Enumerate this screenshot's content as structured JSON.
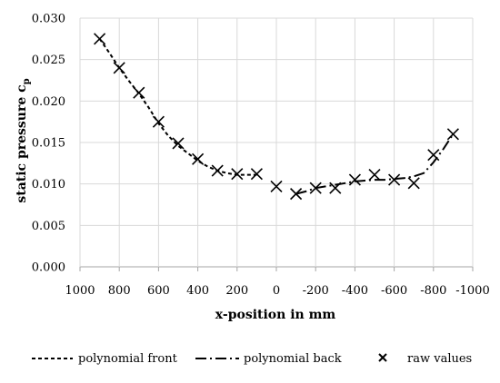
{
  "chart_data": {
    "type": "scatter",
    "xlabel": "x-position in mm",
    "ylabel": "static pressure c",
    "ylabel_sub": "p",
    "xlim": [
      1000,
      -1000
    ],
    "ylim": [
      0,
      0.03
    ],
    "x_ticks": [
      1000,
      800,
      600,
      400,
      200,
      0,
      -200,
      -400,
      -600,
      -800,
      -1000
    ],
    "x_tick_labels": [
      "1000",
      "800",
      "600",
      "400",
      "200",
      "0",
      "-200",
      "-400",
      "-600",
      "-800",
      "-1000"
    ],
    "y_ticks": [
      0,
      0.005,
      0.01,
      0.015,
      0.02,
      0.025,
      0.03
    ],
    "y_tick_labels": [
      "0.000",
      "0.005",
      "0.010",
      "0.015",
      "0.020",
      "0.025",
      "0.030"
    ],
    "grid": true,
    "legend_position": "bottom",
    "series": [
      {
        "name": "polynomial front",
        "style": "dashed",
        "x": [
          900,
          850,
          800,
          750,
          700,
          650,
          600,
          550,
          500,
          450,
          400,
          350,
          300,
          250,
          200,
          150,
          100
        ],
        "y": [
          0.0275,
          0.0258,
          0.024,
          0.0224,
          0.0209,
          0.0192,
          0.0173,
          0.0158,
          0.0146,
          0.0137,
          0.0128,
          0.0121,
          0.0116,
          0.0113,
          0.0111,
          0.0111,
          0.0111
        ]
      },
      {
        "name": "polynomial back",
        "style": "dash-dot",
        "x": [
          -100,
          -150,
          -200,
          -250,
          -300,
          -350,
          -400,
          -450,
          -500,
          -550,
          -600,
          -650,
          -700,
          -750,
          -800,
          -850,
          -900
        ],
        "y": [
          0.0088,
          0.0091,
          0.0095,
          0.0097,
          0.0099,
          0.0101,
          0.0103,
          0.0104,
          0.0105,
          0.0105,
          0.0106,
          0.0107,
          0.0109,
          0.0113,
          0.0126,
          0.0142,
          0.016
        ]
      },
      {
        "name": "raw values",
        "style": "marker-x",
        "x": [
          900,
          800,
          700,
          600,
          500,
          400,
          300,
          200,
          100,
          0,
          -100,
          -200,
          -300,
          -400,
          -500,
          -600,
          -700,
          -800,
          -900
        ],
        "y": [
          0.0275,
          0.024,
          0.021,
          0.0175,
          0.0149,
          0.013,
          0.0116,
          0.0112,
          0.0112,
          0.0097,
          0.0088,
          0.0095,
          0.0095,
          0.0105,
          0.0111,
          0.0105,
          0.0101,
          0.0135,
          0.016
        ]
      }
    ],
    "colors": {
      "line": "#000000",
      "grid": "#d9d9d9",
      "axis": "#a6a6a6"
    }
  }
}
